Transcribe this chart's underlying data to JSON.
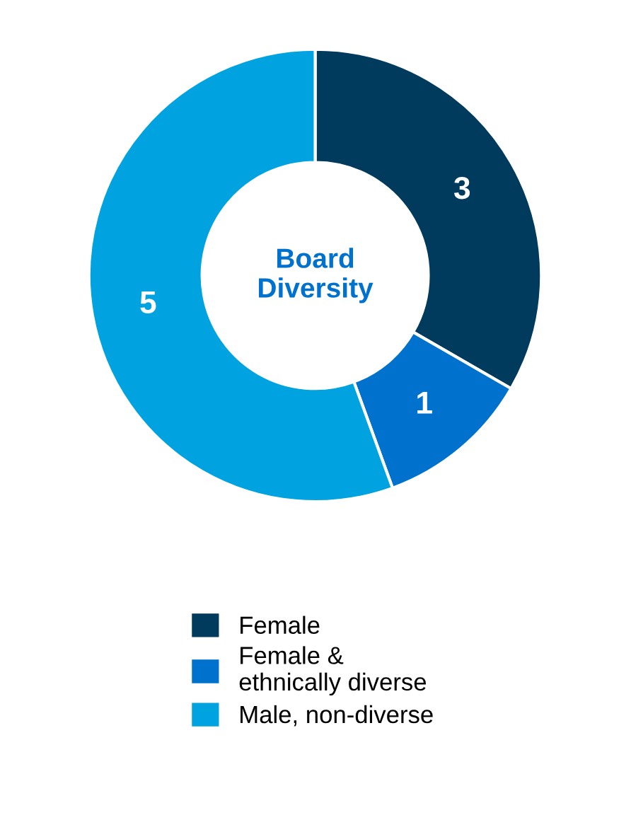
{
  "chart_data": {
    "type": "donut",
    "title": "Board Diversity",
    "categories": [
      "Female",
      "Female &\nethnically diverse",
      "Male, non-diverse"
    ],
    "values": [
      3,
      1,
      5
    ],
    "colors": [
      "#003a5d",
      "#0072ce",
      "#00a3e0"
    ],
    "data_labels": true,
    "legend": "bottom"
  }
}
